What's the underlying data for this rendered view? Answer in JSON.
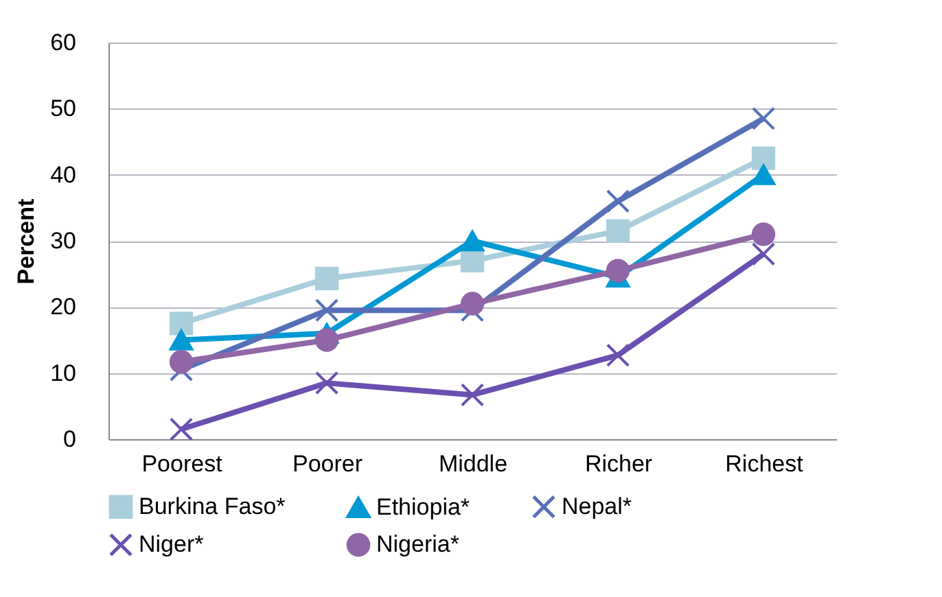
{
  "chart_data": {
    "type": "line",
    "ylabel": "Percent",
    "categories": [
      "Poorest",
      "Poorer",
      "Middle",
      "Richer",
      "Richest"
    ],
    "series": [
      {
        "name": "Burkina Faso*",
        "color": "#a9cfdc",
        "marker": "square",
        "values": [
          17.5,
          24.3,
          27,
          31.5,
          42.5
        ]
      },
      {
        "name": "Ethiopia*",
        "color": "#0099d4",
        "marker": "triangle",
        "values": [
          15,
          16,
          30,
          24.5,
          40
        ]
      },
      {
        "name": "Nepal*",
        "color": "#5670b8",
        "marker": "cross",
        "values": [
          10.5,
          19.5,
          19.5,
          36,
          48.5
        ]
      },
      {
        "name": "Niger*",
        "color": "#6a50b0",
        "marker": "cross",
        "values": [
          1.5,
          8.5,
          6.7,
          12.7,
          28
        ]
      },
      {
        "name": "Nigeria*",
        "color": "#9066a6",
        "marker": "circle",
        "values": [
          11.7,
          15,
          20.5,
          25.5,
          31
        ]
      }
    ],
    "ylim": [
      0,
      60
    ],
    "yticks": [
      0,
      10,
      20,
      30,
      40,
      50,
      60
    ],
    "grid": "y",
    "legend": "bottom",
    "line_style": "solid"
  }
}
